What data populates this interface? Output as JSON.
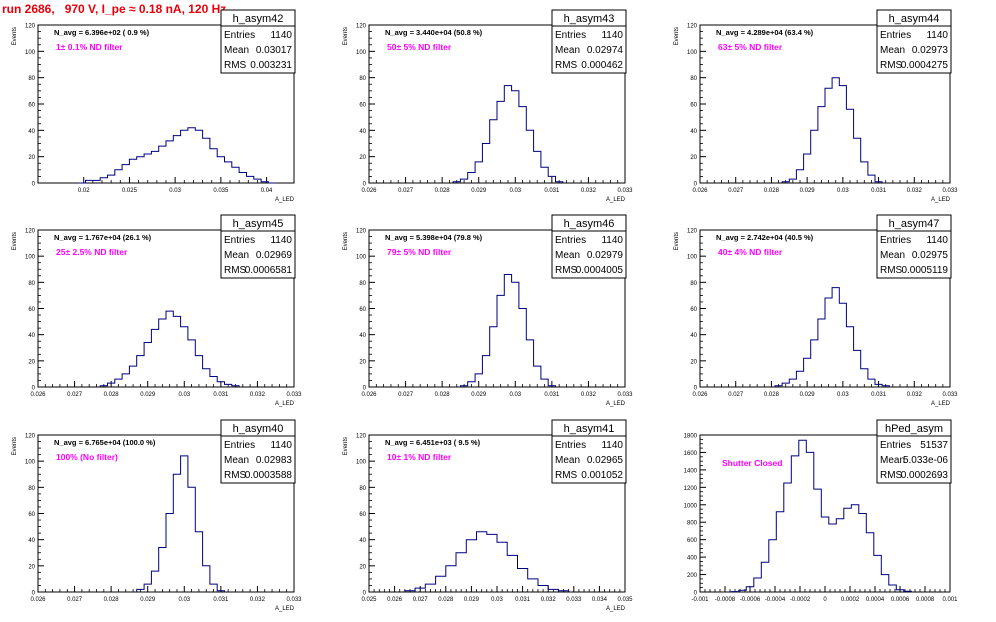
{
  "page": {
    "run_title": "run 2686,   970 V, I_pe ≈ 0.18 nA, 120 Hz",
    "colors": {
      "histogram_line": "#000080",
      "annotation": "#ff00ff",
      "title": "#e8000b"
    }
  },
  "chart_data": [
    {
      "type": "histogram",
      "name": "h_asym42",
      "avg_label": "N_avg = 6.396e+02 ( 0.9 %)",
      "filter_label": "1± 0.1% ND filter",
      "stats": {
        "entries_label": "Entries",
        "entries": "1140",
        "mean_label": "Mean",
        "mean": "0.03017",
        "rms_label": "RMS",
        "rms": "0.003231"
      },
      "xlabel": "A_LED",
      "ylabel": "Events",
      "xlim": [
        0.015,
        0.043
      ],
      "ylim": [
        0,
        120
      ],
      "xticks": [
        0.02,
        0.025,
        0.03,
        0.035,
        0.04
      ],
      "xtick_labels": [
        "0.02",
        "0.025",
        "0.03",
        "0.035",
        "0.04"
      ],
      "yticks": [
        0,
        20,
        40,
        60,
        80,
        100,
        120
      ],
      "ytick_labels": [
        "0",
        "20",
        "40",
        "60",
        "80",
        "100",
        "120"
      ],
      "bins": [
        [
          0.0198,
          0
        ],
        [
          0.0206,
          2
        ],
        [
          0.0214,
          2
        ],
        [
          0.0222,
          4
        ],
        [
          0.023,
          6
        ],
        [
          0.0238,
          10
        ],
        [
          0.0246,
          14
        ],
        [
          0.0254,
          18
        ],
        [
          0.0262,
          20
        ],
        [
          0.027,
          22
        ],
        [
          0.0278,
          24
        ],
        [
          0.0286,
          28
        ],
        [
          0.0294,
          32
        ],
        [
          0.0302,
          36
        ],
        [
          0.031,
          40
        ],
        [
          0.0318,
          42
        ],
        [
          0.0326,
          40
        ],
        [
          0.0334,
          34
        ],
        [
          0.0342,
          26
        ],
        [
          0.035,
          20
        ],
        [
          0.0358,
          16
        ],
        [
          0.0366,
          12
        ],
        [
          0.0374,
          8
        ],
        [
          0.0382,
          5
        ],
        [
          0.039,
          3
        ],
        [
          0.0398,
          1
        ],
        [
          0.0406,
          0
        ]
      ]
    },
    {
      "type": "histogram",
      "name": "h_asym43",
      "avg_label": "N_avg = 3.440e+04 (50.8 %)",
      "filter_label": "50± 5% ND filter",
      "stats": {
        "entries_label": "Entries",
        "entries": "1140",
        "mean_label": "Mean",
        "mean": "0.02974",
        "rms_label": "RMS",
        "rms": "0.000462"
      },
      "xlabel": "A_LED",
      "ylabel": "Events",
      "xlim": [
        0.026,
        0.033
      ],
      "ylim": [
        0,
        120
      ],
      "xticks": [
        0.026,
        0.027,
        0.028,
        0.029,
        0.03,
        0.031,
        0.032,
        0.033
      ],
      "xtick_labels": [
        "0.026",
        "0.027",
        "0.028",
        "0.029",
        "0.03",
        "0.031",
        "0.032",
        "0.033"
      ],
      "yticks": [
        0,
        20,
        40,
        60,
        80,
        100,
        120
      ],
      "ytick_labels": [
        "0",
        "20",
        "40",
        "60",
        "80",
        "100",
        "120"
      ],
      "bins": [
        [
          0.0284,
          1
        ],
        [
          0.0286,
          3
        ],
        [
          0.0288,
          8
        ],
        [
          0.029,
          16
        ],
        [
          0.0292,
          30
        ],
        [
          0.0294,
          48
        ],
        [
          0.0296,
          62
        ],
        [
          0.0298,
          74
        ],
        [
          0.03,
          70
        ],
        [
          0.0302,
          58
        ],
        [
          0.0304,
          40
        ],
        [
          0.0306,
          24
        ],
        [
          0.0308,
          12
        ],
        [
          0.031,
          5
        ],
        [
          0.0312,
          1
        ]
      ]
    },
    {
      "type": "histogram",
      "name": "h_asym44",
      "avg_label": "N_avg = 4.289e+04 (63.4 %)",
      "filter_label": "63± 5% ND filter",
      "stats": {
        "entries_label": "Entries",
        "entries": "1140",
        "mean_label": "Mean",
        "mean": "0.02973",
        "rms_label": "RMS",
        "rms": "0.0004275"
      },
      "xlabel": "A_LED",
      "ylabel": "Events",
      "xlim": [
        0.026,
        0.033
      ],
      "ylim": [
        0,
        120
      ],
      "xticks": [
        0.026,
        0.027,
        0.028,
        0.029,
        0.03,
        0.031,
        0.032,
        0.033
      ],
      "xtick_labels": [
        "0.026",
        "0.027",
        "0.028",
        "0.029",
        "0.03",
        "0.031",
        "0.032",
        "0.033"
      ],
      "yticks": [
        0,
        20,
        40,
        60,
        80,
        100,
        120
      ],
      "ytick_labels": [
        "0",
        "20",
        "40",
        "60",
        "80",
        "100",
        "120"
      ],
      "bins": [
        [
          0.0284,
          1
        ],
        [
          0.0286,
          3
        ],
        [
          0.0288,
          10
        ],
        [
          0.029,
          22
        ],
        [
          0.0292,
          40
        ],
        [
          0.0294,
          58
        ],
        [
          0.0296,
          72
        ],
        [
          0.0298,
          80
        ],
        [
          0.03,
          74
        ],
        [
          0.0302,
          56
        ],
        [
          0.0304,
          34
        ],
        [
          0.0306,
          16
        ],
        [
          0.0308,
          6
        ],
        [
          0.031,
          1
        ]
      ]
    },
    {
      "type": "histogram",
      "name": "h_asym45",
      "avg_label": "N_avg = 1.767e+04 (26.1 %)",
      "filter_label": "25± 2.5% ND filter",
      "stats": {
        "entries_label": "Entries",
        "entries": "1140",
        "mean_label": "Mean",
        "mean": "0.02969",
        "rms_label": "RMS",
        "rms": "0.0006581"
      },
      "xlabel": "A_LED",
      "ylabel": "Events",
      "xlim": [
        0.026,
        0.033
      ],
      "ylim": [
        0,
        120
      ],
      "xticks": [
        0.026,
        0.027,
        0.028,
        0.029,
        0.03,
        0.031,
        0.032,
        0.033
      ],
      "xtick_labels": [
        "0.026",
        "0.027",
        "0.028",
        "0.029",
        "0.03",
        "0.031",
        "0.032",
        "0.033"
      ],
      "yticks": [
        0,
        20,
        40,
        60,
        80,
        100,
        120
      ],
      "ytick_labels": [
        "0",
        "20",
        "40",
        "60",
        "80",
        "100",
        "120"
      ],
      "bins": [
        [
          0.0278,
          1
        ],
        [
          0.028,
          3
        ],
        [
          0.0282,
          6
        ],
        [
          0.0284,
          10
        ],
        [
          0.0286,
          16
        ],
        [
          0.0288,
          24
        ],
        [
          0.029,
          34
        ],
        [
          0.0292,
          44
        ],
        [
          0.0294,
          52
        ],
        [
          0.0296,
          58
        ],
        [
          0.0298,
          54
        ],
        [
          0.03,
          46
        ],
        [
          0.0302,
          36
        ],
        [
          0.0304,
          24
        ],
        [
          0.0306,
          14
        ],
        [
          0.0308,
          8
        ],
        [
          0.031,
          4
        ],
        [
          0.0312,
          2
        ],
        [
          0.0314,
          1
        ]
      ]
    },
    {
      "type": "histogram",
      "name": "h_asym46",
      "avg_label": "N_avg = 5.398e+04 (79.8 %)",
      "filter_label": "79± 5% ND filter",
      "stats": {
        "entries_label": "Entries",
        "entries": "1140",
        "mean_label": "Mean",
        "mean": "0.02979",
        "rms_label": "RMS",
        "rms": "0.0004005"
      },
      "xlabel": "A_LED",
      "ylabel": "Events",
      "xlim": [
        0.026,
        0.033
      ],
      "ylim": [
        0,
        120
      ],
      "xticks": [
        0.026,
        0.027,
        0.028,
        0.029,
        0.03,
        0.031,
        0.032,
        0.033
      ],
      "xtick_labels": [
        "0.026",
        "0.027",
        "0.028",
        "0.029",
        "0.03",
        "0.031",
        "0.032",
        "0.033"
      ],
      "yticks": [
        0,
        20,
        40,
        60,
        80,
        100,
        120
      ],
      "ytick_labels": [
        "0",
        "20",
        "40",
        "60",
        "80",
        "100",
        "120"
      ],
      "bins": [
        [
          0.0286,
          1
        ],
        [
          0.0288,
          4
        ],
        [
          0.029,
          10
        ],
        [
          0.0292,
          24
        ],
        [
          0.0294,
          46
        ],
        [
          0.0296,
          70
        ],
        [
          0.0298,
          86
        ],
        [
          0.03,
          80
        ],
        [
          0.0302,
          60
        ],
        [
          0.0304,
          36
        ],
        [
          0.0306,
          16
        ],
        [
          0.0308,
          6
        ],
        [
          0.031,
          1
        ]
      ]
    },
    {
      "type": "histogram",
      "name": "h_asym47",
      "avg_label": "N_avg = 2.742e+04 (40.5 %)",
      "filter_label": "40± 4% ND filter",
      "stats": {
        "entries_label": "Entries",
        "entries": "1140",
        "mean_label": "Mean",
        "mean": "0.02975",
        "rms_label": "RMS",
        "rms": "0.0005119"
      },
      "xlabel": "A_LED",
      "ylabel": "Events",
      "xlim": [
        0.026,
        0.033
      ],
      "ylim": [
        0,
        120
      ],
      "xticks": [
        0.026,
        0.027,
        0.028,
        0.029,
        0.03,
        0.031,
        0.032,
        0.033
      ],
      "xtick_labels": [
        "0.026",
        "0.027",
        "0.028",
        "0.029",
        "0.03",
        "0.031",
        "0.032",
        "0.033"
      ],
      "yticks": [
        0,
        20,
        40,
        60,
        80,
        100,
        120
      ],
      "ytick_labels": [
        "0",
        "20",
        "40",
        "60",
        "80",
        "100",
        "120"
      ],
      "bins": [
        [
          0.0282,
          1
        ],
        [
          0.0284,
          3
        ],
        [
          0.0286,
          6
        ],
        [
          0.0288,
          12
        ],
        [
          0.029,
          22
        ],
        [
          0.0292,
          36
        ],
        [
          0.0294,
          52
        ],
        [
          0.0296,
          68
        ],
        [
          0.0298,
          76
        ],
        [
          0.03,
          64
        ],
        [
          0.0302,
          46
        ],
        [
          0.0304,
          28
        ],
        [
          0.0306,
          14
        ],
        [
          0.0308,
          6
        ],
        [
          0.031,
          2
        ],
        [
          0.0312,
          1
        ]
      ]
    },
    {
      "type": "histogram",
      "name": "h_asym40",
      "avg_label": "N_avg = 6.765e+04 (100.0 %)",
      "filter_label": "100% (No filter)",
      "stats": {
        "entries_label": "Entries",
        "entries": "1140",
        "mean_label": "Mean",
        "mean": "0.02983",
        "rms_label": "RMS",
        "rms": "0.0003588"
      },
      "xlabel": "A_LED",
      "ylabel": "Events",
      "xlim": [
        0.026,
        0.033
      ],
      "ylim": [
        0,
        120
      ],
      "xticks": [
        0.026,
        0.027,
        0.028,
        0.029,
        0.03,
        0.031,
        0.032,
        0.033
      ],
      "xtick_labels": [
        "0.026",
        "0.027",
        "0.028",
        "0.029",
        "0.03",
        "0.031",
        "0.032",
        "0.033"
      ],
      "yticks": [
        0,
        20,
        40,
        60,
        80,
        100,
        120
      ],
      "ytick_labels": [
        "0",
        "20",
        "40",
        "60",
        "80",
        "100",
        "120"
      ],
      "bins": [
        [
          0.0288,
          2
        ],
        [
          0.029,
          6
        ],
        [
          0.0292,
          16
        ],
        [
          0.0294,
          34
        ],
        [
          0.0296,
          60
        ],
        [
          0.0298,
          90
        ],
        [
          0.03,
          104
        ],
        [
          0.0302,
          80
        ],
        [
          0.0304,
          46
        ],
        [
          0.0306,
          20
        ],
        [
          0.0308,
          6
        ],
        [
          0.031,
          1
        ]
      ]
    },
    {
      "type": "histogram",
      "name": "h_asym41",
      "avg_label": "N_avg = 6.451e+03 ( 9.5 %)",
      "filter_label": "10± 1% ND filter",
      "stats": {
        "entries_label": "Entries",
        "entries": "1140",
        "mean_label": "Mean",
        "mean": "0.02965",
        "rms_label": "RMS",
        "rms": "0.001052"
      },
      "xlabel": "A_LED",
      "ylabel": "Events",
      "xlim": [
        0.025,
        0.035
      ],
      "ylim": [
        0,
        120
      ],
      "xticks": [
        0.025,
        0.026,
        0.027,
        0.028,
        0.029,
        0.03,
        0.031,
        0.032,
        0.033,
        0.034,
        0.035
      ],
      "xtick_labels": [
        "0.025",
        "0.026",
        "0.027",
        "0.028",
        "0.029",
        "0.03",
        "0.031",
        "0.032",
        "0.033",
        "0.034",
        "0.035"
      ],
      "yticks": [
        0,
        20,
        40,
        60,
        80,
        100,
        120
      ],
      "ytick_labels": [
        "0",
        "20",
        "40",
        "60",
        "80",
        "100",
        "120"
      ],
      "bins": [
        [
          0.0266,
          1
        ],
        [
          0.027,
          3
        ],
        [
          0.0274,
          6
        ],
        [
          0.0278,
          12
        ],
        [
          0.0282,
          20
        ],
        [
          0.0286,
          30
        ],
        [
          0.029,
          40
        ],
        [
          0.0294,
          46
        ],
        [
          0.0298,
          44
        ],
        [
          0.0302,
          38
        ],
        [
          0.0306,
          28
        ],
        [
          0.031,
          18
        ],
        [
          0.0314,
          10
        ],
        [
          0.0318,
          5
        ],
        [
          0.0322,
          2
        ],
        [
          0.0326,
          1
        ]
      ]
    },
    {
      "type": "histogram",
      "name": "hPed_asym",
      "avg_label": "",
      "filter_label": "Shutter Closed",
      "stats": {
        "entries_label": "Entries",
        "entries": "51537",
        "mean_label": "Mean",
        "mean": "5.033e-06",
        "rms_label": "RMS",
        "rms": "0.0002693"
      },
      "xlabel": "",
      "ylabel": "",
      "xlim": [
        -0.001,
        0.001
      ],
      "ylim": [
        0,
        1800
      ],
      "xticks": [
        -0.001,
        -0.0008,
        -0.0006,
        -0.0004,
        -0.0002,
        0,
        0.0002,
        0.0004,
        0.0006,
        0.0008,
        0.001
      ],
      "xtick_labels": [
        "-0.001",
        "-0.0008",
        "-0.0006",
        "-0.0004",
        "-0.0002",
        "0",
        "0.0002",
        "0.0004",
        "0.0006",
        "0.0008",
        "0.001"
      ],
      "yticks": [
        0,
        200,
        400,
        600,
        800,
        1000,
        1200,
        1400,
        1600,
        1800
      ],
      "ytick_labels": [
        "0",
        "200",
        "400",
        "600",
        "800",
        "1000",
        "1200",
        "1400",
        "1600",
        "1800"
      ],
      "bins": [
        [
          -0.00072,
          5
        ],
        [
          -0.00066,
          20
        ],
        [
          -0.0006,
          60
        ],
        [
          -0.00054,
          160
        ],
        [
          -0.00048,
          340
        ],
        [
          -0.00042,
          600
        ],
        [
          -0.00036,
          920
        ],
        [
          -0.0003,
          1250
        ],
        [
          -0.00024,
          1560
        ],
        [
          -0.00018,
          1740
        ],
        [
          -0.00012,
          1600
        ],
        [
          -6e-05,
          1180
        ],
        [
          0,
          860
        ],
        [
          6e-05,
          780
        ],
        [
          0.00012,
          840
        ],
        [
          0.00018,
          960
        ],
        [
          0.00024,
          1000
        ],
        [
          0.0003,
          900
        ],
        [
          0.00036,
          680
        ],
        [
          0.00042,
          420
        ],
        [
          0.00048,
          200
        ],
        [
          0.00054,
          80
        ],
        [
          0.0006,
          25
        ],
        [
          0.00066,
          8
        ]
      ]
    }
  ]
}
